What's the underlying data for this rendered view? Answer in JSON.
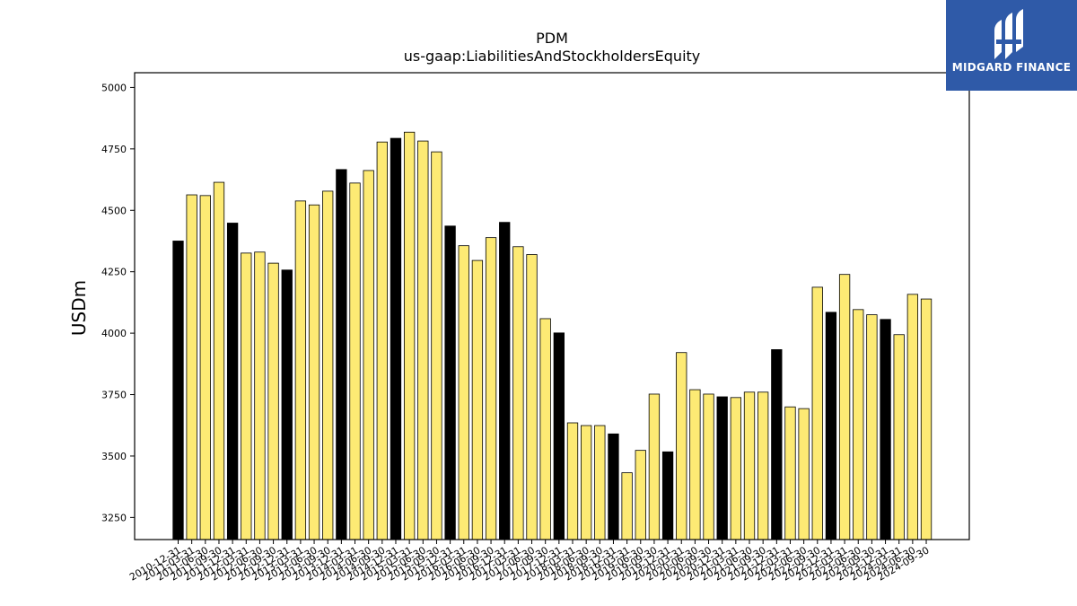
{
  "brand": {
    "name": "MIDGARD FINANCE",
    "bg_color": "#2f5aa8"
  },
  "chart_data": {
    "type": "bar",
    "title": "PDM",
    "subtitle": "us-gaap:LiabilitiesAndStockholdersEquity",
    "ylabel": "USDm",
    "xlabel": "",
    "ylim": [
      3160,
      5060
    ],
    "yticks": [
      3250,
      3500,
      3750,
      4000,
      4250,
      4500,
      4750,
      5000
    ],
    "grid": false,
    "colors": {
      "annual": "#000000",
      "quarterly": "#fdea74",
      "edge": "#000000"
    },
    "categories": [
      "2010-12-31",
      "2011-03-31",
      "2011-06-30",
      "2011-09-30",
      "2011-12-31",
      "2012-03-31",
      "2012-06-30",
      "2012-09-30",
      "2012-12-31",
      "2013-03-31",
      "2013-06-30",
      "2013-09-30",
      "2013-12-31",
      "2014-03-31",
      "2014-06-30",
      "2014-09-30",
      "2014-12-31",
      "2015-03-31",
      "2015-06-30",
      "2015-09-30",
      "2015-12-31",
      "2016-03-31",
      "2016-06-30",
      "2016-09-30",
      "2016-12-31",
      "2017-03-31",
      "2017-06-30",
      "2017-09-30",
      "2017-12-31",
      "2018-03-31",
      "2018-06-30",
      "2018-09-30",
      "2018-12-31",
      "2019-03-31",
      "2019-06-30",
      "2019-09-30",
      "2019-12-31",
      "2020-03-31",
      "2020-06-30",
      "2020-09-30",
      "2020-12-31",
      "2021-03-31",
      "2021-06-30",
      "2021-09-30",
      "2021-12-31",
      "2022-03-31",
      "2022-06-30",
      "2022-09-30",
      "2022-12-31",
      "2023-03-31",
      "2023-06-30",
      "2023-09-30",
      "2023-12-31",
      "2024-03-31",
      "2024-06-30",
      "2024-09-30"
    ],
    "values": [
      4375,
      4563,
      4560,
      4614,
      4448,
      4326,
      4330,
      4285,
      4257,
      4538,
      4522,
      4578,
      4666,
      4611,
      4662,
      4778,
      4793,
      4818,
      4782,
      4738,
      4436,
      4356,
      4296,
      4389,
      4451,
      4352,
      4320,
      4059,
      4001,
      3635,
      3624,
      3624,
      3590,
      3432,
      3523,
      3752,
      3517,
      3921,
      3770,
      3752,
      3741,
      3738,
      3760,
      3760,
      3933,
      3700,
      3693,
      4187,
      4085,
      4239,
      4096,
      4075,
      4056,
      3994,
      4158,
      4139
    ],
    "annual_flags": [
      1,
      0,
      0,
      0,
      1,
      0,
      0,
      0,
      1,
      0,
      0,
      0,
      1,
      0,
      0,
      0,
      1,
      0,
      0,
      0,
      1,
      0,
      0,
      0,
      1,
      0,
      0,
      0,
      1,
      0,
      0,
      0,
      1,
      0,
      0,
      0,
      1,
      0,
      0,
      0,
      1,
      0,
      0,
      0,
      1,
      0,
      0,
      0,
      1,
      0,
      0,
      0,
      1,
      0,
      0,
      0
    ]
  }
}
